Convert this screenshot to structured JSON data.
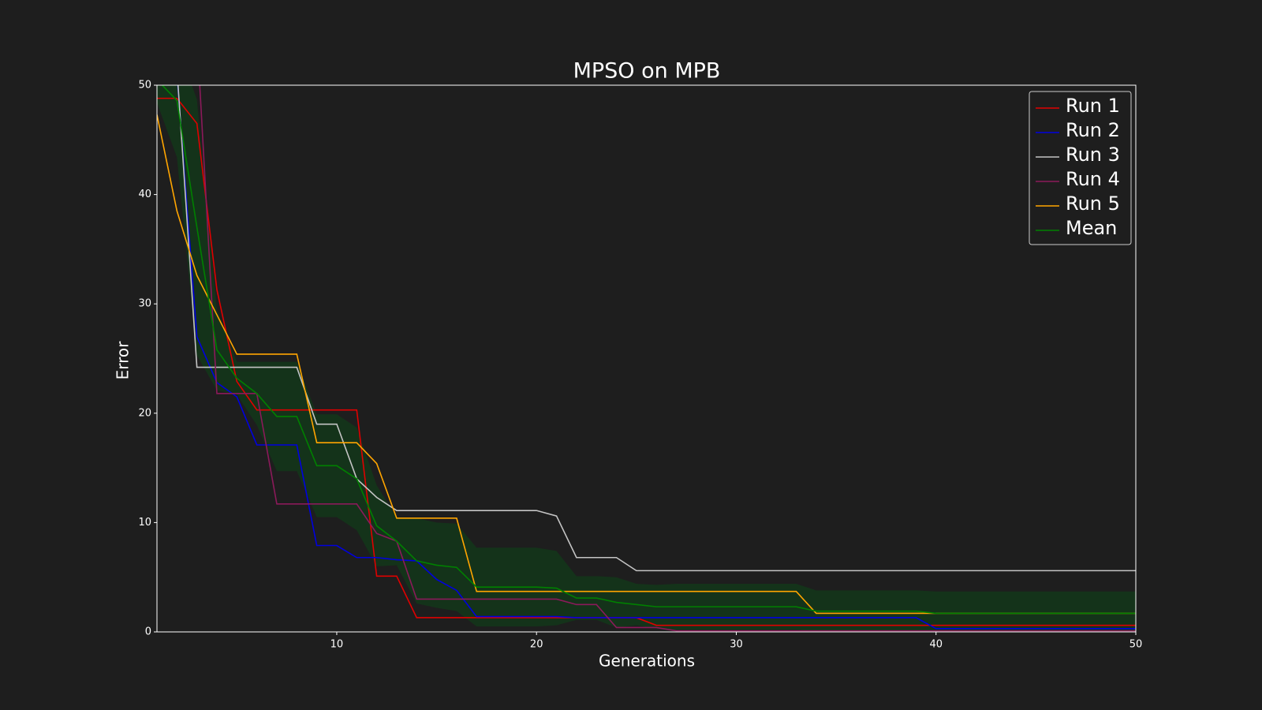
{
  "chart_data": {
    "type": "line",
    "title": "MPSO on MPB",
    "xlabel": "Generations",
    "ylabel": "Error",
    "x": [
      1,
      2,
      3,
      4,
      5,
      6,
      7,
      8,
      9,
      10,
      11,
      12,
      13,
      14,
      15,
      16,
      17,
      18,
      19,
      20,
      21,
      22,
      23,
      24,
      25,
      26,
      27,
      28,
      29,
      30,
      31,
      32,
      33,
      34,
      35,
      36,
      37,
      38,
      39,
      40,
      41,
      42,
      43,
      44,
      45,
      46,
      47,
      48,
      49,
      50
    ],
    "xlim": [
      1,
      50
    ],
    "xticks": [
      10,
      20,
      30,
      40,
      50
    ],
    "ylim": [
      0,
      50
    ],
    "yticks": [
      0,
      10,
      20,
      30,
      40,
      50
    ],
    "legend": "upper right",
    "series": [
      {
        "name": "Run 1",
        "color": "#e00000",
        "values": [
          48.8,
          48.8,
          46.5,
          31.3,
          22.9,
          20.3,
          20.3,
          20.3,
          20.3,
          20.3,
          20.3,
          5.1,
          5.1,
          1.3,
          1.3,
          1.3,
          1.3,
          1.3,
          1.3,
          1.3,
          1.3,
          1.3,
          1.3,
          1.3,
          1.3,
          0.6,
          0.6,
          0.6,
          0.6,
          0.6,
          0.6,
          0.6,
          0.6,
          0.6,
          0.6,
          0.6,
          0.6,
          0.6,
          0.6,
          0.6,
          0.6,
          0.6,
          0.6,
          0.6,
          0.6,
          0.6,
          0.6,
          0.6,
          0.6,
          0.6
        ]
      },
      {
        "name": "Run 2",
        "color": "#0000e0",
        "values": [
          52,
          51,
          27,
          22.8,
          21.5,
          17.1,
          17.1,
          17.1,
          7.9,
          7.9,
          6.8,
          6.8,
          6.6,
          6.5,
          4.8,
          3.8,
          1.4,
          1.4,
          1.4,
          1.4,
          1.4,
          1.3,
          1.3,
          1.3,
          1.3,
          1.3,
          1.3,
          1.3,
          1.3,
          1.3,
          1.3,
          1.3,
          1.3,
          1.3,
          1.3,
          1.3,
          1.3,
          1.3,
          1.3,
          0.3,
          0.3,
          0.3,
          0.3,
          0.3,
          0.3,
          0.3,
          0.3,
          0.3,
          0.3,
          0.3
        ]
      },
      {
        "name": "Run 3",
        "color": "#c4c4c4",
        "values": [
          52,
          51.5,
          24.2,
          24.2,
          24.2,
          24.2,
          24.2,
          24.2,
          19,
          19,
          14,
          12.3,
          11.1,
          11.1,
          11.1,
          11.1,
          11.1,
          11.1,
          11.1,
          11.1,
          10.6,
          6.8,
          6.8,
          6.8,
          5.6,
          5.6,
          5.6,
          5.6,
          5.6,
          5.6,
          5.6,
          5.6,
          5.6,
          5.6,
          5.6,
          5.6,
          5.6,
          5.6,
          5.6,
          5.6,
          5.6,
          5.6,
          5.6,
          5.6,
          5.6,
          5.6,
          5.6,
          5.6,
          5.6,
          5.6
        ]
      },
      {
        "name": "Run 4",
        "color": "#8b1a5a",
        "values": [
          52.4,
          52.7,
          54.7,
          21.8,
          21.8,
          21.8,
          11.7,
          11.7,
          11.7,
          11.7,
          11.7,
          9,
          8.3,
          3,
          3,
          3,
          3,
          3,
          3,
          3,
          3,
          2.5,
          2.5,
          0.4,
          0.4,
          0.4,
          0.1,
          0.1,
          0.1,
          0.1,
          0.1,
          0.1,
          0.1,
          0.1,
          0.1,
          0.1,
          0.1,
          0.1,
          0.1,
          0.1,
          0.1,
          0.1,
          0.1,
          0.1,
          0.1,
          0.1,
          0.1,
          0.1,
          0.1,
          0.1
        ]
      },
      {
        "name": "Run 5",
        "color": "#ffa500",
        "values": [
          47.3,
          38.5,
          32.6,
          29,
          25.4,
          25.4,
          25.4,
          25.4,
          17.3,
          17.3,
          17.3,
          15.4,
          10.4,
          10.4,
          10.4,
          10.4,
          3.7,
          3.7,
          3.7,
          3.7,
          3.7,
          3.7,
          3.7,
          3.7,
          3.7,
          3.7,
          3.7,
          3.7,
          3.7,
          3.7,
          3.7,
          3.7,
          3.7,
          1.7,
          1.7,
          1.7,
          1.7,
          1.7,
          1.7,
          1.7,
          1.7,
          1.7,
          1.7,
          1.7,
          1.7,
          1.7,
          1.7,
          1.7,
          1.7,
          1.7
        ]
      },
      {
        "name": "Mean",
        "color": "#008000",
        "band_color": "#14331a",
        "values": [
          50.5,
          48.6,
          37,
          25.8,
          23.2,
          21.8,
          19.7,
          19.7,
          15.2,
          15.2,
          14,
          9.7,
          8.3,
          6.5,
          6.1,
          5.9,
          4.1,
          4.1,
          4.1,
          4.1,
          4,
          3.1,
          3.1,
          2.7,
          2.5,
          2.3,
          2.3,
          2.3,
          2.3,
          2.3,
          2.3,
          2.3,
          2.3,
          1.9,
          1.9,
          1.9,
          1.9,
          1.9,
          1.9,
          1.7,
          1.7,
          1.7,
          1.7,
          1.7,
          1.7,
          1.7,
          1.7,
          1.7,
          1.7,
          1.7
        ],
        "std": [
          2.1,
          5.2,
          11.7,
          3.7,
          1.5,
          2.9,
          5,
          5,
          4.7,
          4.7,
          4.7,
          3.7,
          2.2,
          3.9,
          3.9,
          4,
          3.6,
          3.6,
          3.6,
          3.6,
          3.4,
          2,
          2,
          2.3,
          1.9,
          2,
          2.1,
          2.1,
          2.1,
          2.1,
          2.1,
          2.1,
          2.1,
          1.9,
          1.9,
          1.9,
          1.9,
          1.9,
          1.9,
          2,
          2,
          2,
          2,
          2,
          2,
          2,
          2,
          2,
          2,
          2
        ]
      }
    ]
  }
}
